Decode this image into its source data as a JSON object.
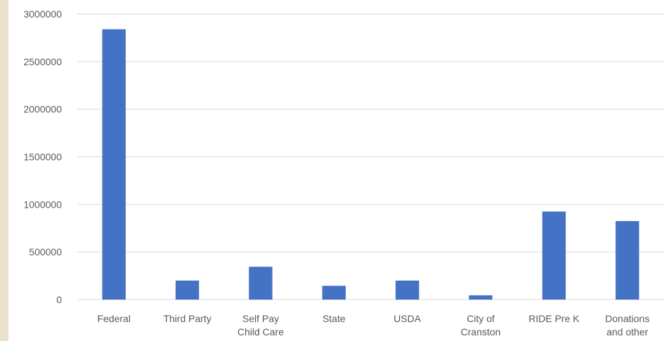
{
  "chart_data": {
    "type": "bar",
    "categories": [
      "Federal",
      "Third Party",
      "Self Pay Child Care",
      "State",
      "USDA",
      "City of Cranston",
      "RIDE Pre K",
      "Donations and other"
    ],
    "values": [
      2840000,
      200000,
      345000,
      145000,
      200000,
      45000,
      925000,
      825000
    ],
    "color": "#4472c4",
    "ylim": [
      0,
      3000000
    ],
    "yticks": [
      0,
      500000,
      1000000,
      1500000,
      2000000,
      2500000,
      3000000
    ],
    "grid": true
  }
}
